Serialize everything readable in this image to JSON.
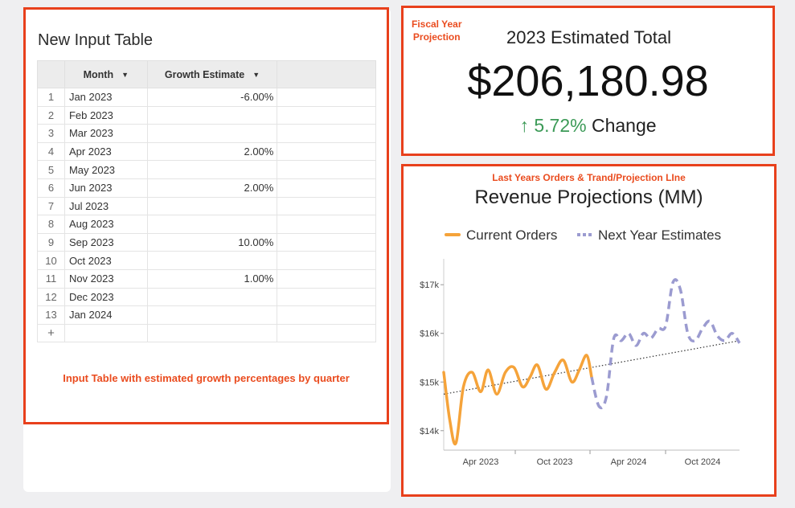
{
  "left_panel": {
    "title": "New Input Table",
    "columns": [
      "Month",
      "Growth Estimate"
    ],
    "rows": [
      {
        "num": "1",
        "month": "Jan 2023",
        "growth": "-6.00%"
      },
      {
        "num": "2",
        "month": "Feb 2023",
        "growth": ""
      },
      {
        "num": "3",
        "month": "Mar 2023",
        "growth": ""
      },
      {
        "num": "4",
        "month": "Apr 2023",
        "growth": "2.00%"
      },
      {
        "num": "5",
        "month": "May 2023",
        "growth": ""
      },
      {
        "num": "6",
        "month": "Jun 2023",
        "growth": "2.00%"
      },
      {
        "num": "7",
        "month": "Jul 2023",
        "growth": ""
      },
      {
        "num": "8",
        "month": "Aug 2023",
        "growth": ""
      },
      {
        "num": "9",
        "month": "Sep 2023",
        "growth": "10.00%"
      },
      {
        "num": "10",
        "month": "Oct 2023",
        "growth": ""
      },
      {
        "num": "11",
        "month": "Nov 2023",
        "growth": "1.00%"
      },
      {
        "num": "12",
        "month": "Dec 2023",
        "growth": ""
      },
      {
        "num": "13",
        "month": "Jan 2024",
        "growth": ""
      }
    ],
    "add_row_label": "+",
    "annotation": "Input Table with estimated growth percentages by quarter"
  },
  "projection_panel": {
    "annotation_line1": "Fiscal Year",
    "annotation_line2": "Projection",
    "title": "2023 Estimated Total",
    "value": "$206,180.98",
    "change_arrow": "↑",
    "change_pct": "5.72%",
    "change_label": "Change"
  },
  "chart_panel": {
    "annotation": "Last Years Orders & Trand/Projection LIne",
    "colors": {
      "current": "#f5a33a",
      "estimate": "#9b9bd0",
      "trend": "#333333"
    }
  },
  "chart_data": {
    "type": "line",
    "title": "Revenue Projections (MM)",
    "legend": [
      "Current Orders",
      "Next Year Estimates"
    ],
    "legend_position": "top",
    "y_ticks": [
      "$14k",
      "$15k",
      "$16k",
      "$17k"
    ],
    "x_ticks": [
      "Apr 2023",
      "Oct 2023",
      "Apr 2024",
      "Oct 2024"
    ],
    "ylim": [
      13600,
      17400
    ],
    "xlim": [
      0,
      24
    ],
    "series": [
      {
        "name": "Current Orders",
        "x": [
          0,
          0.5,
          1.0,
          1.6,
          2.3,
          3.0,
          3.6,
          4.3,
          5.0,
          5.7,
          6.4,
          7.0,
          7.6,
          8.3,
          9.0,
          9.7,
          10.4,
          11.0,
          11.6,
          12.0
        ],
        "y": [
          15200,
          14200,
          13750,
          14900,
          15200,
          14800,
          15250,
          14750,
          15200,
          15300,
          14900,
          15100,
          15350,
          14850,
          15200,
          15450,
          15000,
          15250,
          15550,
          15100
        ]
      },
      {
        "name": "Next Year Estimates",
        "x": [
          12.0,
          12.6,
          13.2,
          13.8,
          14.4,
          15.0,
          15.6,
          16.2,
          16.8,
          17.4,
          18.0,
          18.6,
          19.2,
          19.8,
          20.4,
          21.0,
          21.6,
          22.2,
          22.8,
          23.4,
          24.0
        ],
        "y": [
          15100,
          14500,
          14700,
          15900,
          15850,
          16000,
          15750,
          16000,
          15900,
          16100,
          16150,
          17050,
          16900,
          16000,
          15850,
          16100,
          16250,
          15950,
          15850,
          16000,
          15800
        ]
      },
      {
        "name": "Trend",
        "x": [
          0,
          24
        ],
        "y": [
          14750,
          15850
        ]
      }
    ]
  }
}
